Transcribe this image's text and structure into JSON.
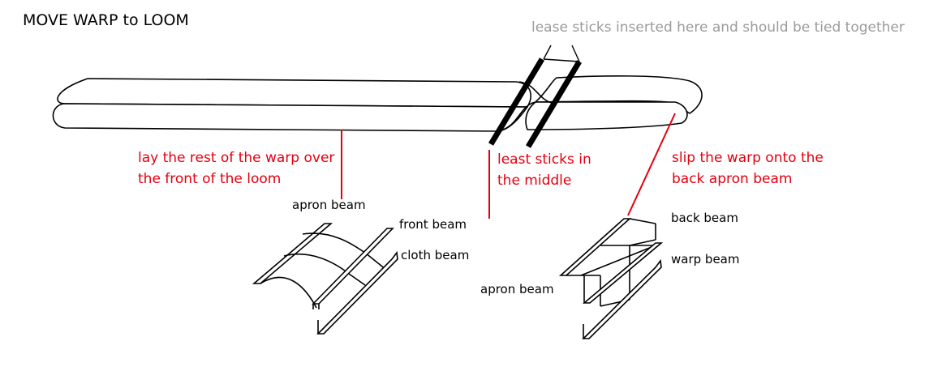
{
  "title": "MOVE WARP to LOOM",
  "annotations": {
    "lease_top": "lease sticks inserted here and should be tied together",
    "front_warp": [
      "lay the rest of the warp over",
      "the front of the loom"
    ],
    "middle": [
      "least sticks in",
      "the middle"
    ],
    "back_warp": [
      "slip the warp onto the",
      "back apron beam"
    ]
  },
  "front_loom": {
    "apron_beam": "apron beam",
    "front_beam": "front beam",
    "cloth_beam": "cloth beam"
  },
  "back_loom": {
    "back_beam": "back beam",
    "warp_beam": "warp beam",
    "apron_beam": "apron beam"
  },
  "colors": {
    "annotation": "#e3000f",
    "note": "#9b9b9b",
    "line": "#000000"
  }
}
